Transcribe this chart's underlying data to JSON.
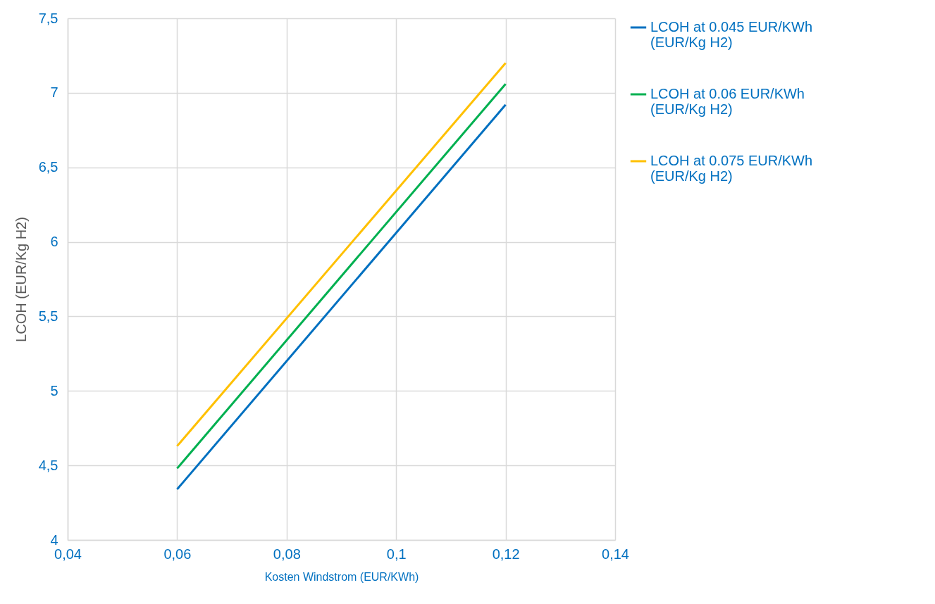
{
  "chart_data": {
    "type": "line",
    "xlabel": "Kosten Windstrom (EUR/KWh)",
    "ylabel": "LCOH (EUR/Kg H2)",
    "x": [
      0.06,
      0.12
    ],
    "series": [
      {
        "name": "LCOH at 0.045 EUR/KWh (EUR/Kg H2)",
        "color": "#0070c0",
        "values": [
          4.34,
          6.92
        ]
      },
      {
        "name": "LCOH at 0.06 EUR/KWh (EUR/Kg H2)",
        "color": "#00b050",
        "values": [
          4.48,
          7.06
        ]
      },
      {
        "name": "LCOH at 0.075 EUR/KWh (EUR/Kg H2)",
        "color": "#ffc000",
        "values": [
          4.63,
          7.2
        ]
      }
    ],
    "xlim": [
      0.04,
      0.14
    ],
    "xticks": [
      {
        "value": 0.04,
        "label": "0,04"
      },
      {
        "value": 0.06,
        "label": "0,06"
      },
      {
        "value": 0.08,
        "label": "0,08"
      },
      {
        "value": 0.1,
        "label": "0,1"
      },
      {
        "value": 0.12,
        "label": "0,12"
      },
      {
        "value": 0.14,
        "label": "0,14"
      }
    ],
    "ylim": [
      4,
      7.5
    ],
    "yticks": [
      4,
      {
        "value": 4.5,
        "label": "4,5"
      },
      5,
      {
        "value": 5.5,
        "label": "5,5"
      },
      6,
      {
        "value": 6.5,
        "label": "6,5"
      },
      7,
      {
        "value": 7.5,
        "label": "7,5"
      }
    ],
    "grid": true,
    "legend": "right"
  }
}
